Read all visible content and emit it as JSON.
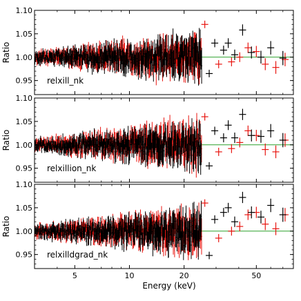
{
  "chart_data": {
    "type": "scatter",
    "xlabel": "Energy (keV)",
    "ylabel": "Ratio",
    "x_scale": "log",
    "xlim": [
      3.0,
      80.0
    ],
    "x_ticks": [
      5,
      10,
      20,
      50
    ],
    "x_tick_labels": [
      "5",
      "10",
      "20",
      "50"
    ],
    "ylim": [
      0.92,
      1.1
    ],
    "y_ticks": [
      0.95,
      1.0,
      1.05,
      1.1
    ],
    "y_tick_labels": [
      "0.95",
      "1.00",
      "1.05",
      "1.10"
    ],
    "reference_line": 1.0,
    "colors": {
      "series_a": "#000000",
      "series_b": "#e8140f",
      "reference": "#2ca02c"
    },
    "panels": [
      {
        "label": "relxill_nk",
        "high_energy_points": {
          "black": [
            [
              27.5,
              0.965
            ],
            [
              29.5,
              1.03
            ],
            [
              33.0,
              1.015
            ],
            [
              35.0,
              1.03
            ],
            [
              38.0,
              1.005
            ],
            [
              42.0,
              1.058
            ],
            [
              47.0,
              1.01
            ],
            [
              53.0,
              1.0
            ],
            [
              60.0,
              1.02
            ],
            [
              70.0,
              0.998
            ]
          ],
          "red": [
            [
              26.0,
              1.07
            ],
            [
              31.0,
              0.985
            ],
            [
              36.5,
              0.99
            ],
            [
              40.5,
              1.0
            ],
            [
              45.0,
              1.02
            ],
            [
              50.0,
              1.012
            ],
            [
              56.0,
              0.985
            ],
            [
              64.0,
              0.978
            ],
            [
              72.0,
              0.995
            ]
          ]
        }
      },
      {
        "label": "relxillion_nk",
        "high_energy_points": {
          "black": [
            [
              27.5,
              0.955
            ],
            [
              29.5,
              1.03
            ],
            [
              33.0,
              1.015
            ],
            [
              35.0,
              1.042
            ],
            [
              38.0,
              1.015
            ],
            [
              42.0,
              1.065
            ],
            [
              47.0,
              1.02
            ],
            [
              53.0,
              1.018
            ],
            [
              60.0,
              1.03
            ],
            [
              70.0,
              1.01
            ]
          ],
          "red": [
            [
              26.0,
              1.06
            ],
            [
              31.0,
              0.985
            ],
            [
              36.5,
              0.992
            ],
            [
              40.5,
              1.005
            ],
            [
              45.0,
              1.03
            ],
            [
              50.0,
              1.02
            ],
            [
              56.0,
              0.99
            ],
            [
              64.0,
              0.985
            ],
            [
              72.0,
              1.01
            ]
          ]
        }
      },
      {
        "label": "relxilldgrad_nk",
        "high_energy_points": {
          "black": [
            [
              27.5,
              0.948
            ],
            [
              29.5,
              1.025
            ],
            [
              33.0,
              1.04
            ],
            [
              35.0,
              1.05
            ],
            [
              38.0,
              1.02
            ],
            [
              42.0,
              1.072
            ],
            [
              47.0,
              1.04
            ],
            [
              53.0,
              1.03
            ],
            [
              60.0,
              1.055
            ],
            [
              70.0,
              1.035
            ]
          ],
          "red": [
            [
              26.0,
              1.06
            ],
            [
              31.0,
              0.985
            ],
            [
              36.5,
              1.0
            ],
            [
              40.5,
              1.01
            ],
            [
              45.0,
              1.035
            ],
            [
              50.0,
              1.04
            ],
            [
              56.0,
              1.015
            ],
            [
              64.0,
              1.005
            ],
            [
              72.0,
              1.035
            ]
          ]
        }
      }
    ],
    "low_energy_noise": {
      "x_range": [
        3.0,
        25.0
      ],
      "max_amplitude": 0.035,
      "points_per_series": 320
    }
  }
}
